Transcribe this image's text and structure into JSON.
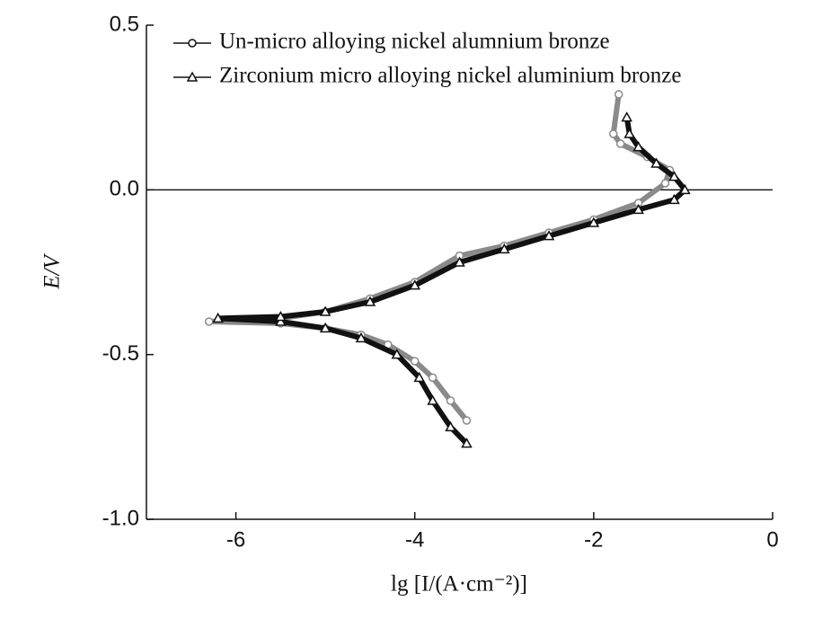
{
  "chart_data": {
    "type": "line",
    "x_label": "lg [I/(A·cm⁻²)]",
    "y_label": "E/V",
    "xlim": [
      -7,
      0
    ],
    "ylim": [
      -1.0,
      0.5
    ],
    "xticks": [
      -6,
      -4,
      -2,
      0
    ],
    "yticks": [
      {
        "value": -1.0,
        "label": "-1.0"
      },
      -0.5,
      {
        "value": 0,
        "label": "0.0"
      },
      0.5
    ],
    "reference_line": 0,
    "legend": "upper left",
    "series": [
      {
        "name": "Un-micro alloying nickel alumnium bronze",
        "color": "#8a8a8a",
        "marker": "circle",
        "x": [
          -3.42,
          -3.6,
          -3.8,
          -4.0,
          -4.3,
          -4.6,
          -5.0,
          -5.5,
          -6.3,
          -5.5,
          -5.0,
          -4.5,
          -4.0,
          -3.5,
          -3.0,
          -2.5,
          -2.0,
          -1.5,
          -1.2,
          -1.15,
          -1.4,
          -1.7,
          -1.78,
          -1.72
        ],
        "values": [
          -0.7,
          -0.64,
          -0.57,
          -0.52,
          -0.47,
          -0.44,
          -0.42,
          -0.405,
          -0.4,
          -0.39,
          -0.37,
          -0.33,
          -0.28,
          -0.2,
          -0.17,
          -0.13,
          -0.09,
          -0.04,
          0.02,
          0.06,
          0.1,
          0.14,
          0.17,
          0.29
        ]
      },
      {
        "name": "Zirconium micro alloying nickel aluminium bronze",
        "color": "#111111",
        "marker": "triangle",
        "x": [
          -3.42,
          -3.6,
          -3.8,
          -3.95,
          -4.2,
          -4.6,
          -5.0,
          -5.5,
          -6.2,
          -5.5,
          -5.0,
          -4.5,
          -4.0,
          -3.5,
          -3.0,
          -2.5,
          -2.0,
          -1.5,
          -1.1,
          -0.98,
          -1.1,
          -1.3,
          -1.5,
          -1.6,
          -1.63
        ],
        "values": [
          -0.77,
          -0.72,
          -0.64,
          -0.57,
          -0.5,
          -0.45,
          -0.42,
          -0.4,
          -0.39,
          -0.385,
          -0.37,
          -0.34,
          -0.29,
          -0.22,
          -0.18,
          -0.14,
          -0.1,
          -0.06,
          -0.03,
          0.0,
          0.04,
          0.08,
          0.13,
          0.17,
          0.22
        ]
      }
    ]
  }
}
